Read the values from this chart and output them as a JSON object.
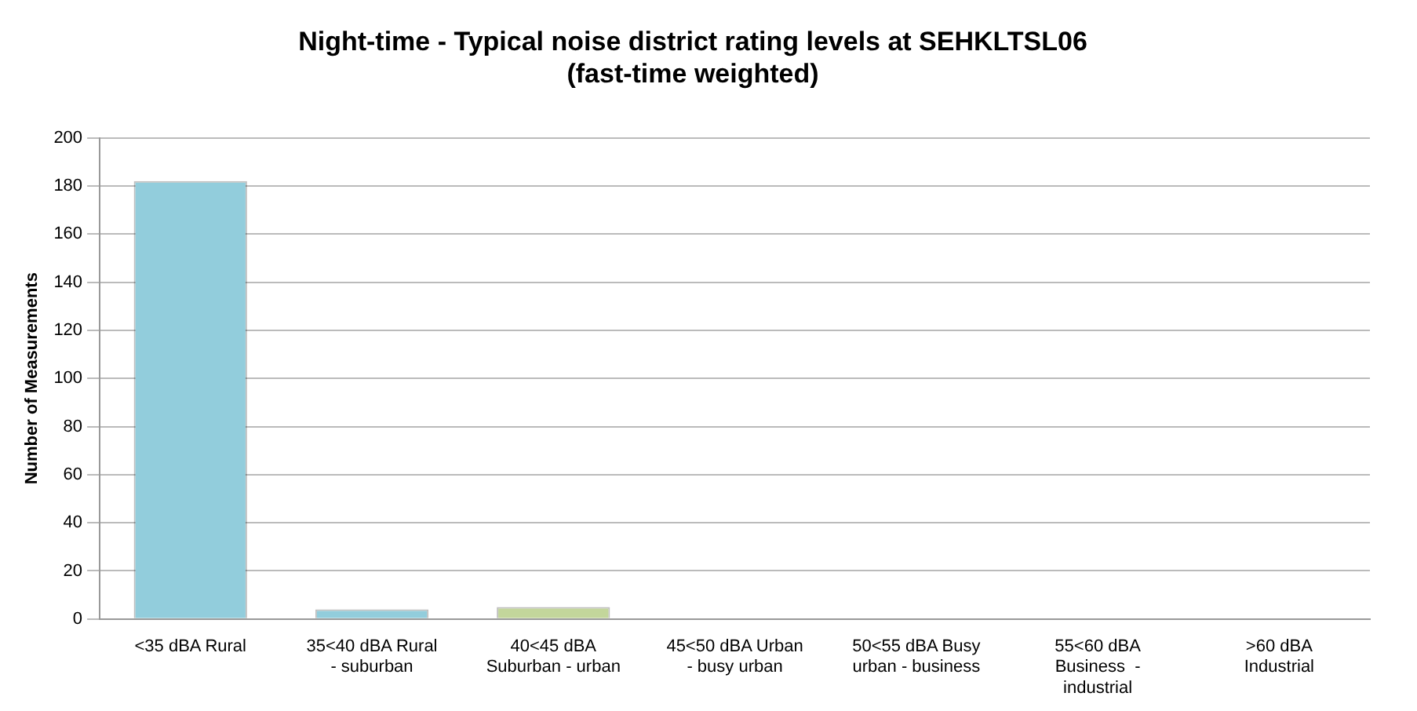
{
  "chart_data": {
    "type": "bar",
    "title": "Night-time - Typical noise district rating levels at SEHKLTSL06\n(fast-time weighted)",
    "ylabel": "Number of Measurements",
    "categories": [
      "<35 dBA Rural",
      "35<40 dBA Rural - suburban",
      "40<45 dBA Suburban - urban",
      "45<50 dBA Urban - busy urban",
      "50<55 dBA Busy urban - business",
      "55<60 dBA Business  - industrial",
      ">60 dBA Industrial"
    ],
    "values": [
      182,
      4,
      5,
      0,
      0,
      0,
      0
    ],
    "colors": [
      "#92cddc",
      "#92cddc",
      "#c3d69b",
      "#c8c840",
      "#c4a07a",
      "#7b4fcf",
      "#a00000"
    ],
    "ylim": [
      0,
      200
    ],
    "yticks": [
      0,
      20,
      40,
      60,
      80,
      100,
      120,
      140,
      160,
      180,
      200
    ],
    "grid": "y",
    "legend": false
  }
}
